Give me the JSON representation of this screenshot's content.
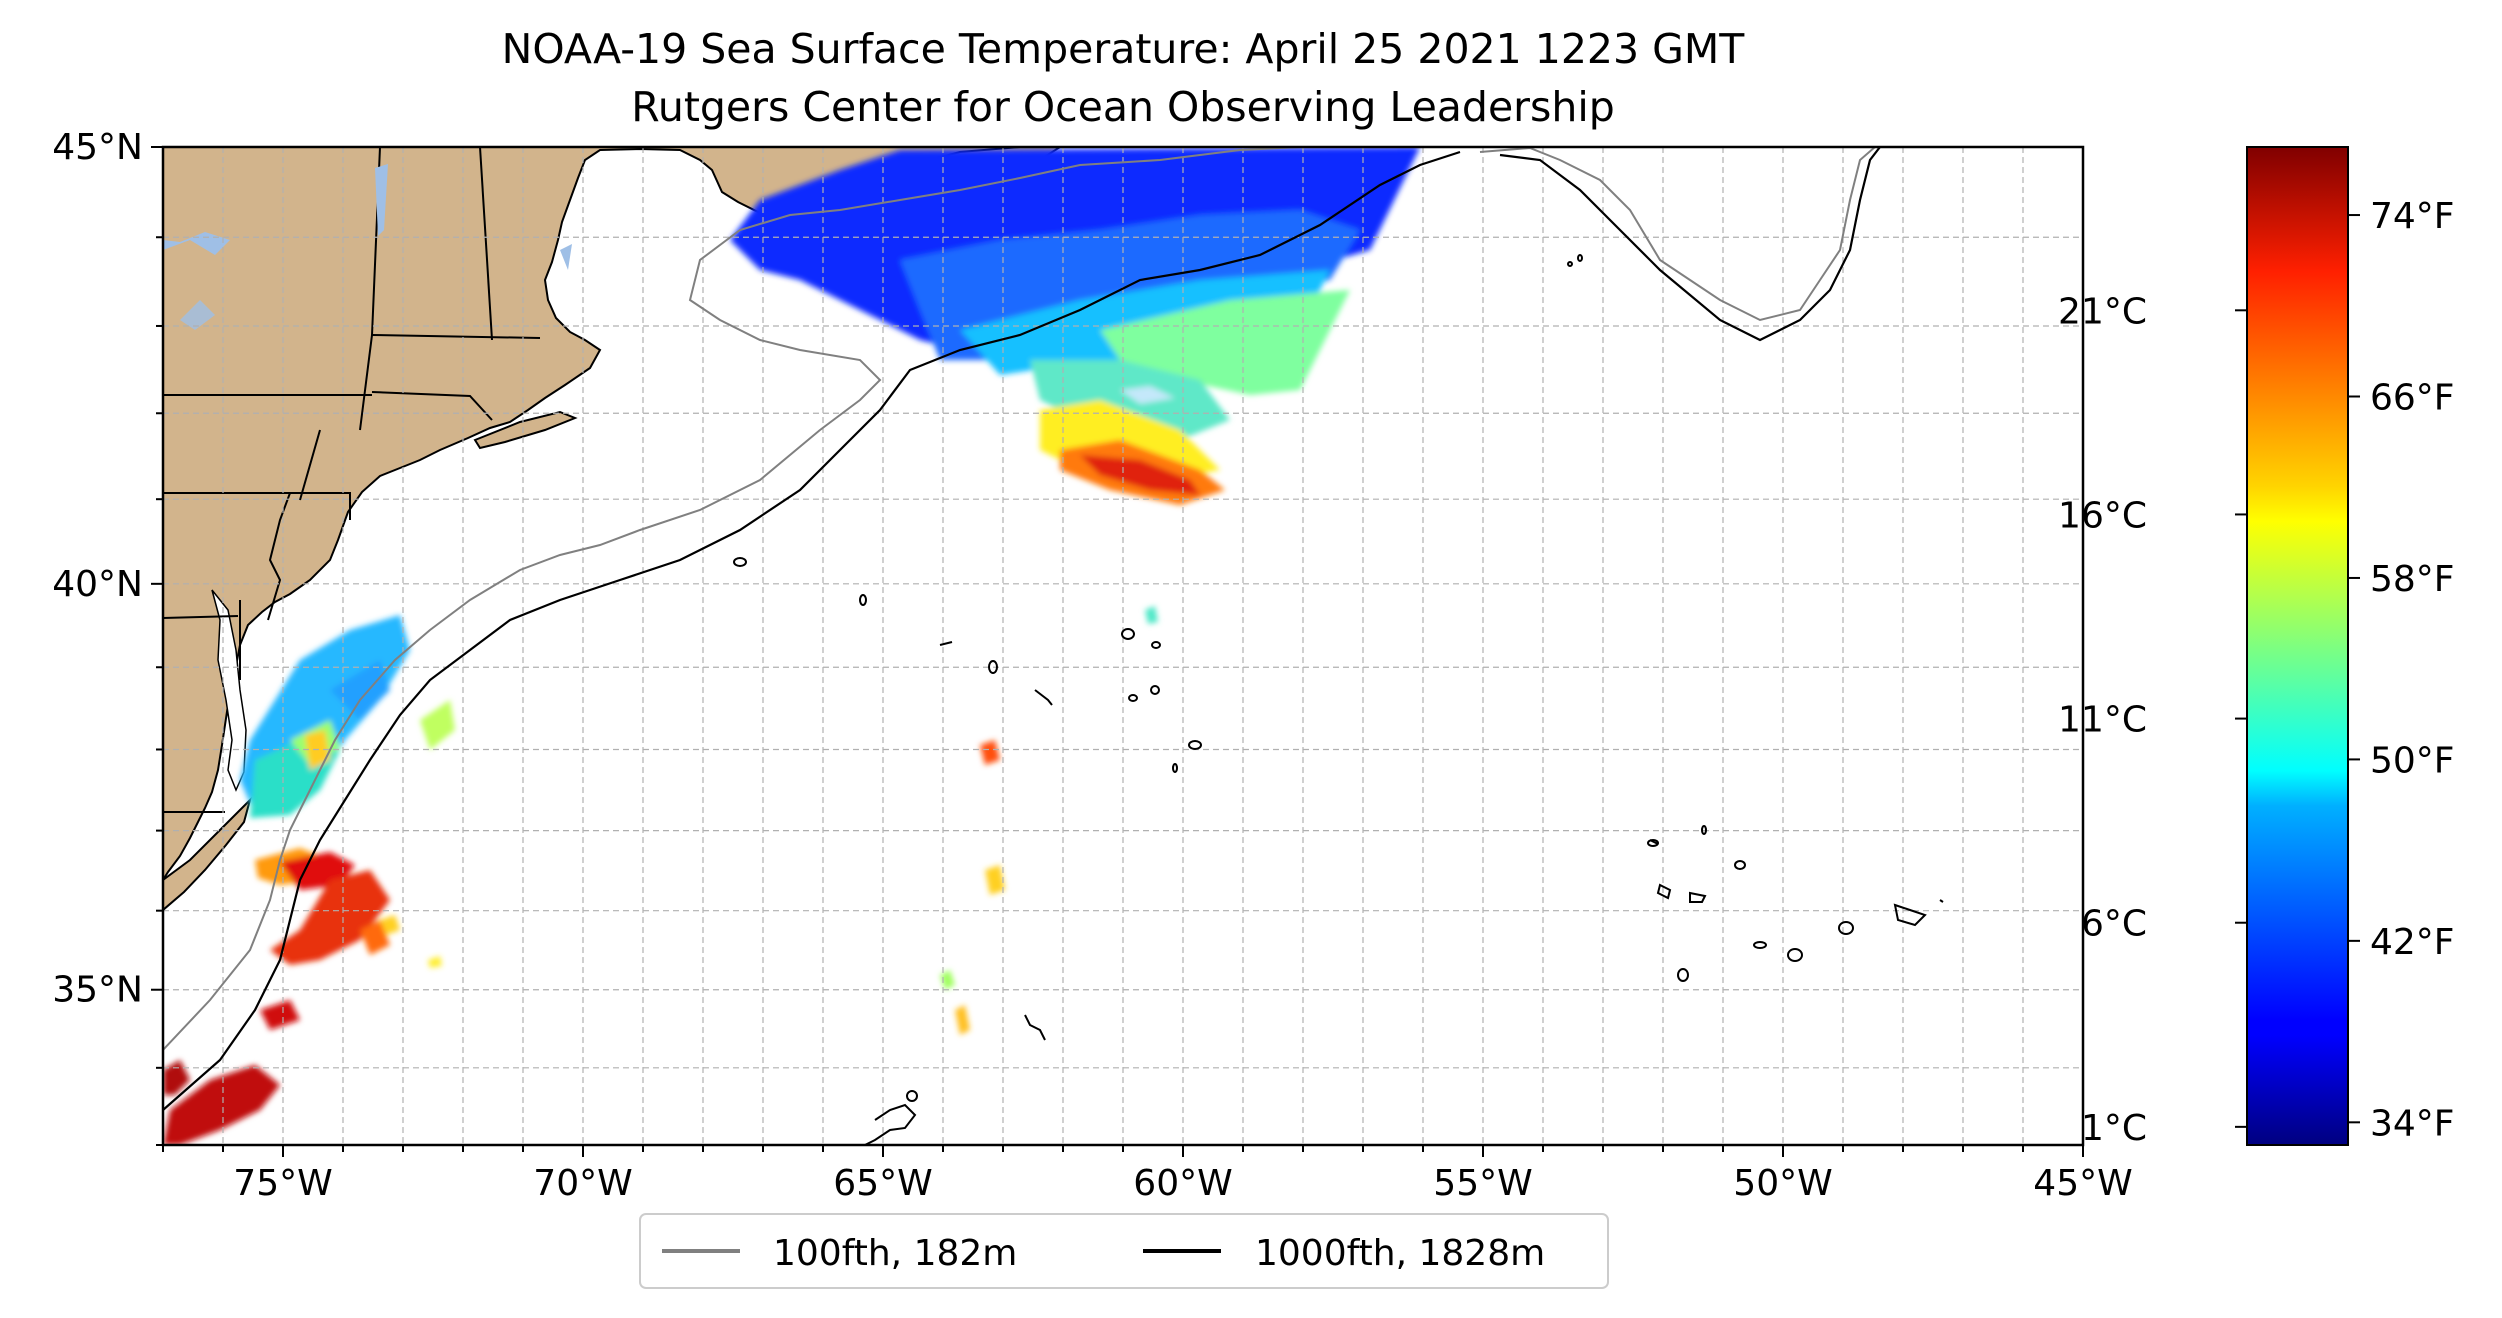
{
  "title": {
    "line1": "NOAA-19 Sea Surface Temperature: April 25 2021 1223 GMT",
    "line2": "Rutgers Center for Ocean Observing Leadership"
  },
  "map": {
    "lon_range": [
      -77,
      -45
    ],
    "lat_range": [
      33,
      45
    ],
    "lon_ticks": [
      {
        "value": -75,
        "label": "75°W"
      },
      {
        "value": -70,
        "label": "70°W"
      },
      {
        "value": -65,
        "label": "65°W"
      },
      {
        "value": -60,
        "label": "60°W"
      },
      {
        "value": -55,
        "label": "55°W"
      },
      {
        "value": -50,
        "label": "50°W"
      },
      {
        "value": -45,
        "label": "45°W"
      }
    ],
    "lat_ticks": [
      {
        "value": 45,
        "label": "45°N"
      },
      {
        "value": 40,
        "label": "40°N"
      },
      {
        "value": 35,
        "label": "35°N"
      }
    ],
    "gridlines": true,
    "colors": {
      "land": "#d2b48c",
      "lakes": "#9fbfe6",
      "coast": "#000000",
      "isobath_100": "#808080",
      "isobath_1000": "#000000",
      "grid": "#b0b0b0"
    }
  },
  "colorbar": {
    "colormap": "jet",
    "celsius_labels": [
      {
        "value": 21,
        "label": "21°C"
      },
      {
        "value": 16,
        "label": "16°C"
      },
      {
        "value": 11,
        "label": "11°C"
      },
      {
        "value": 6,
        "label": "6°C"
      },
      {
        "value": 1,
        "label": "1°C"
      }
    ],
    "fahrenheit_labels": [
      {
        "value": 74,
        "label": "74°F"
      },
      {
        "value": 66,
        "label": "66°F"
      },
      {
        "value": 58,
        "label": "58°F"
      },
      {
        "value": 50,
        "label": "50°F"
      },
      {
        "value": 42,
        "label": "42°F"
      },
      {
        "value": 34,
        "label": "34°F"
      }
    ],
    "range_f": [
      33,
      77
    ]
  },
  "legend": {
    "items": [
      {
        "label": "100fth, 182m",
        "color": "#808080"
      },
      {
        "label": "1000fth, 1828m",
        "color": "#000000"
      }
    ]
  }
}
